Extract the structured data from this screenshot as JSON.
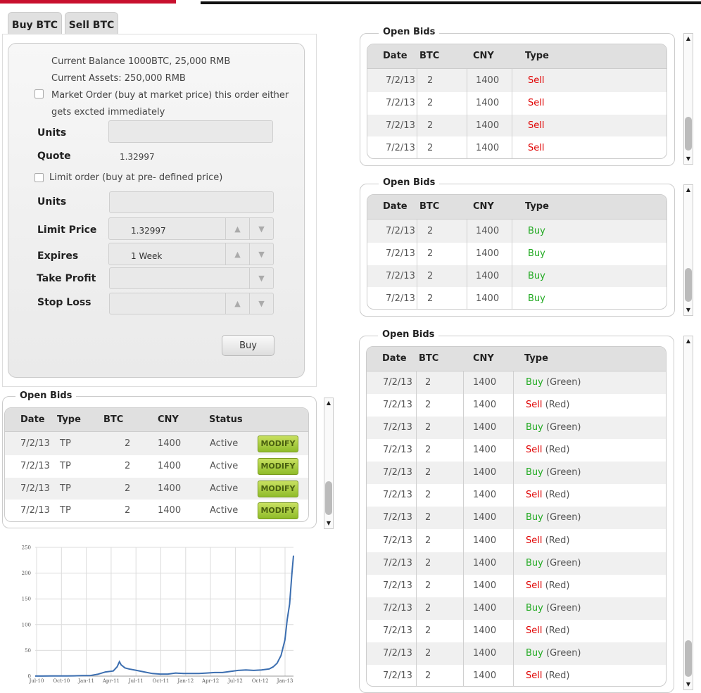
{
  "tabs": [
    {
      "label": "Buy BTC"
    },
    {
      "label": "Sell BTC"
    }
  ],
  "trade": {
    "balance": "Current Balance 1000BTC, 25,000 RMB",
    "assets": "Current Assets: 250,000 RMB",
    "market_order_line1": "Market Order (buy at market price) this order either",
    "market_order_line2": "gets excted immediately",
    "units_label": "Units",
    "units_value": "",
    "quote_label": "Quote",
    "quote_value": "1.32997",
    "limit_order": "Limit order (buy at pre- defined price)",
    "units2_label": "Units",
    "units2_value": "",
    "limit_price_label": "Limit Price",
    "limit_price_value": "1.32997",
    "expires_label": "Expires",
    "expires_value": "1 Week",
    "take_profit_label": "Take Profit",
    "take_profit_value": "",
    "stop_loss_label": "Stop Loss",
    "stop_loss_value": "",
    "buy_button": "Buy"
  },
  "icons": {
    "up": "▲",
    "down": "▼",
    "scroll_up": "▲",
    "scroll_down": "▼"
  },
  "my_bids": {
    "title": "Open Bids",
    "columns": [
      "Date",
      "Type",
      "BTC",
      "CNY",
      "Status"
    ],
    "rows": [
      {
        "date": "7/2/13",
        "type": "TP",
        "btc": "2",
        "cny": "1400",
        "status": "Active",
        "action": "MODIFY"
      },
      {
        "date": "7/2/13",
        "type": "TP",
        "btc": "2",
        "cny": "1400",
        "status": "Active",
        "action": "MODIFY"
      },
      {
        "date": "7/2/13",
        "type": "TP",
        "btc": "2",
        "cny": "1400",
        "status": "Active",
        "action": "MODIFY"
      },
      {
        "date": "7/2/13",
        "type": "TP",
        "btc": "2",
        "cny": "1400",
        "status": "Active",
        "action": "MODIFY"
      }
    ]
  },
  "sell_bids": {
    "title": "Open Bids",
    "columns": [
      "Date",
      "BTC",
      "CNY",
      "Type"
    ],
    "rows": [
      {
        "date": "7/2/13",
        "btc": "2",
        "cny": "1400",
        "type": "Sell"
      },
      {
        "date": "7/2/13",
        "btc": "2",
        "cny": "1400",
        "type": "Sell"
      },
      {
        "date": "7/2/13",
        "btc": "2",
        "cny": "1400",
        "type": "Sell"
      },
      {
        "date": "7/2/13",
        "btc": "2",
        "cny": "1400",
        "type": "Sell"
      }
    ]
  },
  "buy_bids": {
    "title": "Open Bids",
    "columns": [
      "Date",
      "BTC",
      "CNY",
      "Type"
    ],
    "rows": [
      {
        "date": "7/2/13",
        "btc": "2",
        "cny": "1400",
        "type": "Buy"
      },
      {
        "date": "7/2/13",
        "btc": "2",
        "cny": "1400",
        "type": "Buy"
      },
      {
        "date": "7/2/13",
        "btc": "2",
        "cny": "1400",
        "type": "Buy"
      },
      {
        "date": "7/2/13",
        "btc": "2",
        "cny": "1400",
        "type": "Buy"
      }
    ]
  },
  "all_bids": {
    "title": "Open Bids",
    "columns": [
      "Date",
      "BTC",
      "CNY",
      "Type"
    ],
    "rows": [
      {
        "date": "7/2/13",
        "btc": "2",
        "cny": "1400",
        "type": "Buy",
        "color": "(Green)"
      },
      {
        "date": "7/2/13",
        "btc": "2",
        "cny": "1400",
        "type": "Sell",
        "color": "(Red)"
      },
      {
        "date": "7/2/13",
        "btc": "2",
        "cny": "1400",
        "type": "Buy",
        "color": "(Green)"
      },
      {
        "date": "7/2/13",
        "btc": "2",
        "cny": "1400",
        "type": "Sell",
        "color": "(Red)"
      },
      {
        "date": "7/2/13",
        "btc": "2",
        "cny": "1400",
        "type": "Buy",
        "color": "(Green)"
      },
      {
        "date": "7/2/13",
        "btc": "2",
        "cny": "1400",
        "type": "Sell",
        "color": "(Red)"
      },
      {
        "date": "7/2/13",
        "btc": "2",
        "cny": "1400",
        "type": "Buy",
        "color": "(Green)"
      },
      {
        "date": "7/2/13",
        "btc": "2",
        "cny": "1400",
        "type": "Sell",
        "color": "(Red)"
      },
      {
        "date": "7/2/13",
        "btc": "2",
        "cny": "1400",
        "type": "Buy",
        "color": "(Green)"
      },
      {
        "date": "7/2/13",
        "btc": "2",
        "cny": "1400",
        "type": "Sell",
        "color": "(Red)"
      },
      {
        "date": "7/2/13",
        "btc": "2",
        "cny": "1400",
        "type": "Buy",
        "color": "(Green)"
      },
      {
        "date": "7/2/13",
        "btc": "2",
        "cny": "1400",
        "type": "Sell",
        "color": "(Red)"
      },
      {
        "date": "7/2/13",
        "btc": "2",
        "cny": "1400",
        "type": "Buy",
        "color": "(Green)"
      },
      {
        "date": "7/2/13",
        "btc": "2",
        "cny": "1400",
        "type": "Sell",
        "color": "(Red)"
      }
    ]
  },
  "colors": {
    "sell": "#e00000",
    "buy": "#22aa22",
    "line": "#3b6eb0",
    "modify": "#a6c83a"
  },
  "chart_data": {
    "type": "line",
    "title": "",
    "xlabel": "",
    "ylabel": "",
    "ylim": [
      0,
      250
    ],
    "yticks": [
      "250",
      "200",
      "150",
      "100",
      "50",
      "0"
    ],
    "xticks": [
      "Jul-10",
      "Oct-10",
      "Jan-11",
      "Apr-11",
      "Jul-11",
      "Oct-11",
      "Jan-12",
      "Apr-12",
      "Jul-12",
      "Oct-12",
      "Jan-13"
    ],
    "grid": true,
    "series": [
      {
        "values": [
          [
            0.0,
            0.1
          ],
          [
            1.0,
            0.2
          ],
          [
            2.0,
            0.3
          ],
          [
            3.0,
            0.3
          ],
          [
            4.0,
            0.3
          ],
          [
            5.0,
            0.5
          ],
          [
            6.0,
            0.9
          ],
          [
            7.0,
            0.9
          ],
          [
            8.0,
            3.5
          ],
          [
            9.0,
            8
          ],
          [
            10.0,
            10
          ],
          [
            10.5,
            18
          ],
          [
            10.8,
            28
          ],
          [
            11.0,
            22
          ],
          [
            11.5,
            16
          ],
          [
            12.0,
            14
          ],
          [
            13.0,
            11
          ],
          [
            14.0,
            8
          ],
          [
            15.0,
            5
          ],
          [
            16.0,
            4
          ],
          [
            17.0,
            4
          ],
          [
            18.0,
            6
          ],
          [
            19.0,
            5
          ],
          [
            20.0,
            5
          ],
          [
            21.0,
            5
          ],
          [
            22.0,
            6
          ],
          [
            23.0,
            7
          ],
          [
            24.0,
            7
          ],
          [
            25.0,
            9
          ],
          [
            26.0,
            11
          ],
          [
            27.0,
            12
          ],
          [
            28.0,
            11
          ],
          [
            29.0,
            12
          ],
          [
            30.0,
            14
          ],
          [
            30.5,
            18
          ],
          [
            31.0,
            25
          ],
          [
            31.5,
            40
          ],
          [
            32.0,
            70
          ],
          [
            32.3,
            110
          ],
          [
            32.6,
            140
          ],
          [
            32.9,
            200
          ],
          [
            33.1,
            234
          ]
        ]
      }
    ]
  }
}
